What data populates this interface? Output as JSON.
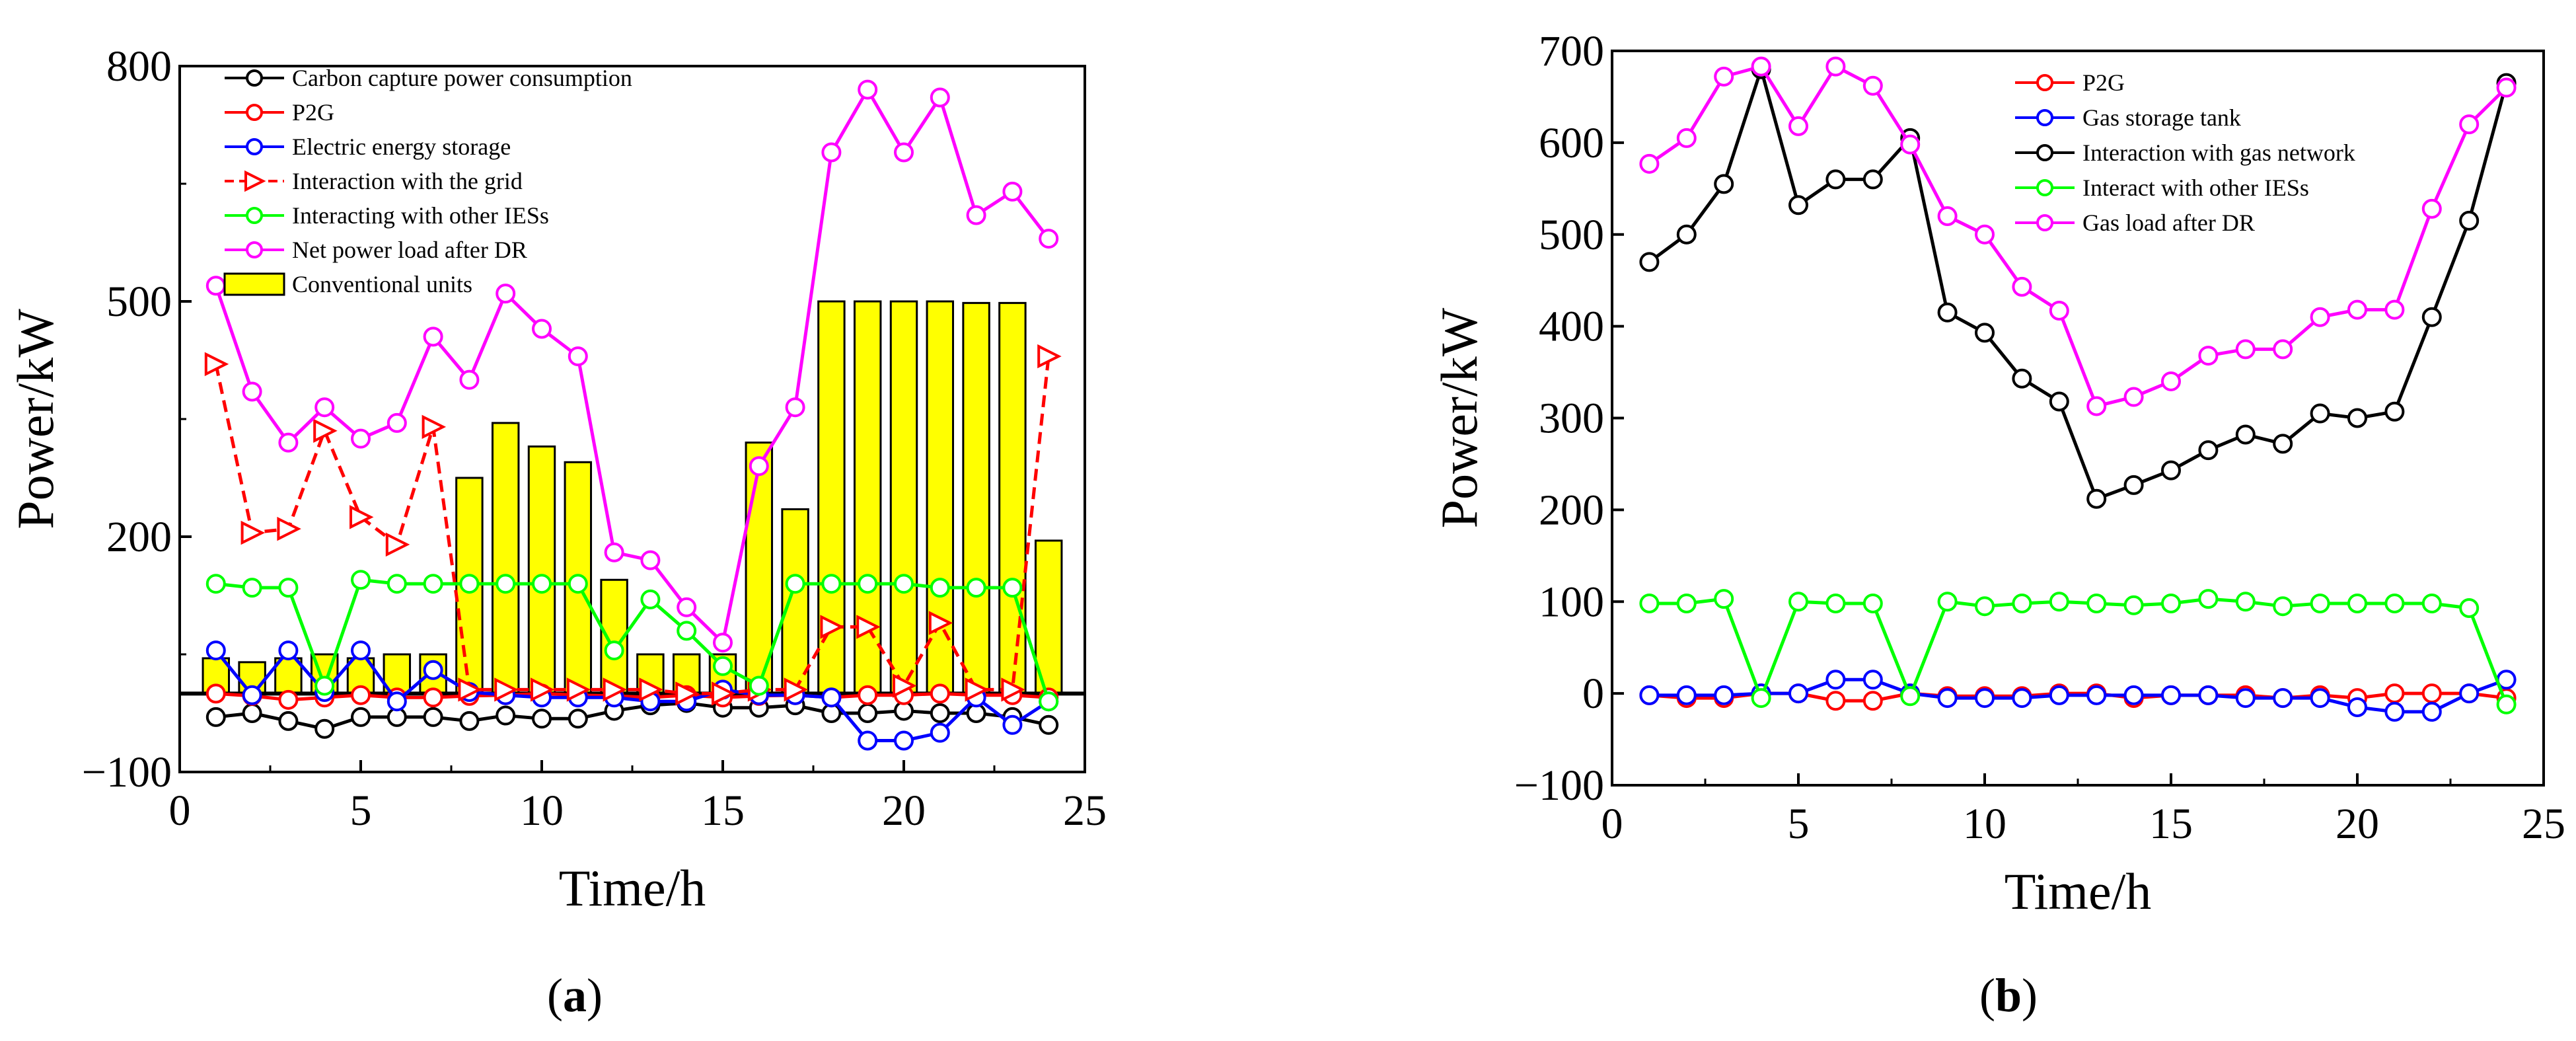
{
  "panels": {
    "a": {
      "caption_open": "(",
      "caption_letter": "a",
      "caption_close": ")"
    },
    "b": {
      "caption_open": "(",
      "caption_letter": "b",
      "caption_close": ")"
    }
  },
  "chart_data": [
    {
      "id": "a",
      "type": "line",
      "title": "",
      "xlabel": "Time/h",
      "ylabel": "Power/kW",
      "xlim": [
        0,
        25
      ],
      "ylim": [
        -100,
        800
      ],
      "xticks": [
        0,
        5,
        10,
        15,
        20,
        25
      ],
      "yticks": [
        -100,
        200,
        500,
        800
      ],
      "grid": false,
      "legend_position": "top-left",
      "x": [
        1,
        2,
        3,
        4,
        5,
        6,
        7,
        8,
        9,
        10,
        11,
        12,
        13,
        14,
        15,
        16,
        17,
        18,
        19,
        20,
        21,
        22,
        23,
        24
      ],
      "bars": {
        "name": "Conventional units",
        "color": "#FFFF00",
        "values": [
          45,
          40,
          45,
          50,
          45,
          50,
          50,
          275,
          345,
          315,
          295,
          145,
          50,
          50,
          50,
          320,
          235,
          500,
          500,
          500,
          500,
          498,
          498,
          195
        ]
      },
      "series": [
        {
          "name": "Carbon capture power consumption",
          "color": "#000000",
          "dash": "",
          "marker": "circle",
          "values": [
            -30,
            -25,
            -35,
            -45,
            -30,
            -30,
            -30,
            -35,
            -28,
            -32,
            -32,
            -22,
            -15,
            -12,
            -18,
            -18,
            -15,
            -25,
            -25,
            -22,
            -25,
            -25,
            -30,
            -40
          ]
        },
        {
          "name": "P2G",
          "color": "#FF0000",
          "dash": "",
          "marker": "circle",
          "values": [
            0,
            -3,
            -8,
            -5,
            -2,
            -5,
            -5,
            -3,
            -2,
            0,
            -2,
            -3,
            -5,
            -2,
            -5,
            -3,
            -2,
            -5,
            -2,
            -2,
            0,
            -2,
            -2,
            -5
          ]
        },
        {
          "name": "Electric energy storage",
          "color": "#0000FF",
          "dash": "",
          "marker": "circle",
          "values": [
            55,
            -2,
            55,
            2,
            55,
            -10,
            30,
            2,
            -2,
            -5,
            -5,
            -5,
            -10,
            -10,
            5,
            -2,
            -2,
            -5,
            -60,
            -60,
            -50,
            -5,
            -40,
            -10
          ]
        },
        {
          "name": "Interaction with the grid",
          "color": "#FF0000",
          "dash": "18,10",
          "marker": "triangle",
          "values": [
            420,
            205,
            210,
            335,
            225,
            190,
            340,
            5,
            5,
            5,
            5,
            5,
            5,
            0,
            0,
            5,
            5,
            85,
            85,
            10,
            90,
            5,
            5,
            430
          ]
        },
        {
          "name": "Interacting with other IESs",
          "color": "#00FF00",
          "dash": "",
          "marker": "circle",
          "values": [
            140,
            135,
            135,
            10,
            145,
            140,
            140,
            140,
            140,
            140,
            140,
            55,
            120,
            80,
            35,
            10,
            140,
            140,
            140,
            140,
            135,
            135,
            135,
            -10
          ]
        },
        {
          "name": "Net power load after DR",
          "color": "#FF00FF",
          "dash": "",
          "marker": "circle",
          "values": [
            520,
            385,
            320,
            365,
            325,
            345,
            455,
            400,
            510,
            465,
            430,
            180,
            170,
            110,
            65,
            290,
            365,
            690,
            770,
            690,
            760,
            610,
            640,
            580
          ]
        }
      ]
    },
    {
      "id": "b",
      "type": "line",
      "title": "",
      "xlabel": "Time/h",
      "ylabel": "Power/kW",
      "xlim": [
        0,
        25
      ],
      "ylim": [
        -100,
        700
      ],
      "xticks": [
        0,
        5,
        10,
        15,
        20,
        25
      ],
      "yticks": [
        -100,
        0,
        100,
        200,
        300,
        400,
        500,
        600,
        700
      ],
      "grid": false,
      "legend_position": "top-center",
      "x": [
        1,
        2,
        3,
        4,
        5,
        6,
        7,
        8,
        9,
        10,
        11,
        12,
        13,
        14,
        15,
        16,
        17,
        18,
        19,
        20,
        21,
        22,
        23,
        24
      ],
      "series": [
        {
          "name": "P2G",
          "color": "#FF0000",
          "dash": "",
          "marker": "circle",
          "values": [
            -2,
            -5,
            -5,
            0,
            0,
            -8,
            -8,
            0,
            -3,
            -3,
            -3,
            0,
            0,
            -5,
            -2,
            -2,
            -2,
            -5,
            -2,
            -5,
            0,
            0,
            0,
            -5
          ]
        },
        {
          "name": "Gas storage tank",
          "color": "#0000FF",
          "dash": "",
          "marker": "circle",
          "values": [
            -2,
            -2,
            -2,
            0,
            0,
            15,
            15,
            0,
            -5,
            -5,
            -5,
            -2,
            -2,
            -2,
            -2,
            -2,
            -5,
            -5,
            -5,
            -15,
            -20,
            -20,
            0,
            15
          ]
        },
        {
          "name": "Interaction with gas network",
          "color": "#000000",
          "dash": "",
          "marker": "circle",
          "values": [
            470,
            500,
            555,
            680,
            532,
            560,
            560,
            605,
            415,
            393,
            343,
            318,
            212,
            227,
            243,
            265,
            282,
            272,
            305,
            300,
            307,
            410,
            515,
            665
          ]
        },
        {
          "name": "Interact with other IESs",
          "color": "#00FF00",
          "dash": "",
          "marker": "circle",
          "values": [
            98,
            98,
            103,
            -5,
            100,
            98,
            98,
            -3,
            100,
            95,
            98,
            100,
            98,
            96,
            98,
            103,
            100,
            95,
            98,
            98,
            98,
            98,
            93,
            -12
          ]
        },
        {
          "name": "Gas load after DR",
          "color": "#FF00FF",
          "dash": "",
          "marker": "circle",
          "values": [
            577,
            605,
            672,
            683,
            618,
            683,
            662,
            598,
            520,
            500,
            443,
            417,
            313,
            323,
            340,
            368,
            375,
            375,
            410,
            418,
            418,
            528,
            620,
            660
          ]
        }
      ]
    }
  ]
}
